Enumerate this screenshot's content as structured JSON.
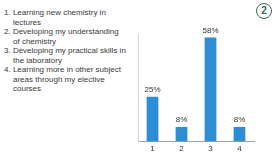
{
  "chart_data": {
    "type": "bar",
    "title": "2",
    "annotations": [
      "1. Learning new chemistry in lectures",
      "2. Developing my understanding of chemistry",
      "3. Developing my practical skills in the laboratory",
      "4. Learning more in other subject areas through my elective courses"
    ],
    "categories": [
      "1",
      "2",
      "3",
      "4"
    ],
    "values": [
      25,
      8,
      58,
      8
    ],
    "value_labels": [
      "25%",
      "8%",
      "58%",
      "8%"
    ],
    "data_labels": true,
    "color": "#2d8ed6",
    "ylim": [
      0,
      60
    ],
    "tick_labels": "x",
    "grid": false
  }
}
